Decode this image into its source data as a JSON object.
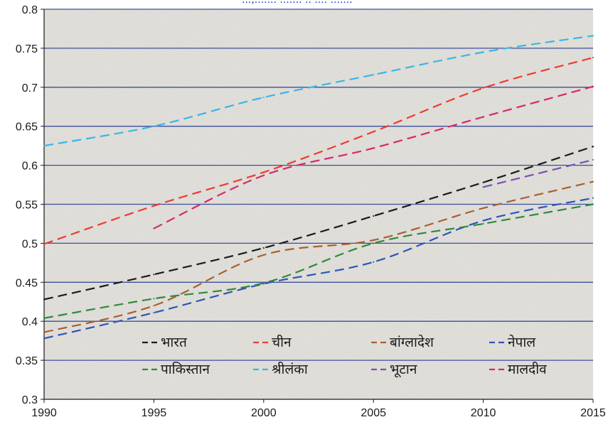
{
  "chart_data": {
    "type": "line",
    "title": "",
    "xlabel": "",
    "ylabel": "",
    "xlim": [
      1990,
      2015
    ],
    "ylim": [
      0.3,
      0.8
    ],
    "x_ticks": [
      1990,
      1995,
      2000,
      2005,
      2010,
      2015
    ],
    "y_ticks": [
      0.3,
      0.35,
      0.4,
      0.45,
      0.5,
      0.55,
      0.6,
      0.65,
      0.7,
      0.75,
      0.8
    ],
    "y_tick_labels": [
      "0.3",
      "0.35",
      "0.4",
      "0.45",
      "0.5",
      "0.55",
      "0.6",
      "0.65",
      "0.7",
      "0.75",
      "0.8"
    ],
    "x_tick_labels": [
      "1990",
      "1995",
      "2000",
      "2005",
      "2010",
      "2015"
    ],
    "grid": "horizontal",
    "grid_color": "#3b4f9a",
    "plot_background": "#e8e6e1",
    "line_style": "dashed",
    "legend_position": "bottom-inside",
    "series": [
      {
        "name": "भारत",
        "color": "#1a1a1a",
        "points": [
          [
            1990,
            0.428
          ],
          [
            1995,
            0.46
          ],
          [
            2000,
            0.494
          ],
          [
            2005,
            0.535
          ],
          [
            2010,
            0.578
          ],
          [
            2015,
            0.624
          ]
        ]
      },
      {
        "name": "चीन",
        "color": "#ee3b30",
        "points": [
          [
            1990,
            0.499
          ],
          [
            1995,
            0.548
          ],
          [
            2000,
            0.591
          ],
          [
            2005,
            0.643
          ],
          [
            2010,
            0.699
          ],
          [
            2015,
            0.738
          ]
        ]
      },
      {
        "name": "बांग्लादेश",
        "color": "#a9602e",
        "points": [
          [
            1990,
            0.386
          ],
          [
            1995,
            0.42
          ],
          [
            2000,
            0.485
          ],
          [
            2005,
            0.504
          ],
          [
            2010,
            0.545
          ],
          [
            2015,
            0.579
          ]
        ]
      },
      {
        "name": "नेपाल",
        "color": "#2e55b8",
        "points": [
          [
            1990,
            0.378
          ],
          [
            1995,
            0.411
          ],
          [
            2000,
            0.448
          ],
          [
            2005,
            0.476
          ],
          [
            2010,
            0.529
          ],
          [
            2015,
            0.558
          ]
        ]
      },
      {
        "name": "पाकिस्तान",
        "color": "#2f8a3c",
        "points": [
          [
            1990,
            0.404
          ],
          [
            1995,
            0.429
          ],
          [
            2000,
            0.449
          ],
          [
            2005,
            0.5
          ],
          [
            2010,
            0.525
          ],
          [
            2015,
            0.55
          ]
        ]
      },
      {
        "name": "श्रीलंका",
        "color": "#38b6e6",
        "points": [
          [
            1990,
            0.625
          ],
          [
            1995,
            0.65
          ],
          [
            2000,
            0.687
          ],
          [
            2005,
            0.716
          ],
          [
            2010,
            0.745
          ],
          [
            2015,
            0.766
          ]
        ]
      },
      {
        "name": "भूटान",
        "color": "#7b4fb8",
        "points": [
          [
            2010,
            0.572
          ],
          [
            2015,
            0.607
          ]
        ]
      },
      {
        "name": "मालदीव",
        "color": "#d6286e",
        "points": [
          [
            1995,
            0.519
          ],
          [
            2000,
            0.587
          ],
          [
            2005,
            0.622
          ],
          [
            2010,
            0.662
          ],
          [
            2015,
            0.701
          ]
        ]
      }
    ]
  },
  "top_partial_text": "...,....... ....... .. .... ......."
}
